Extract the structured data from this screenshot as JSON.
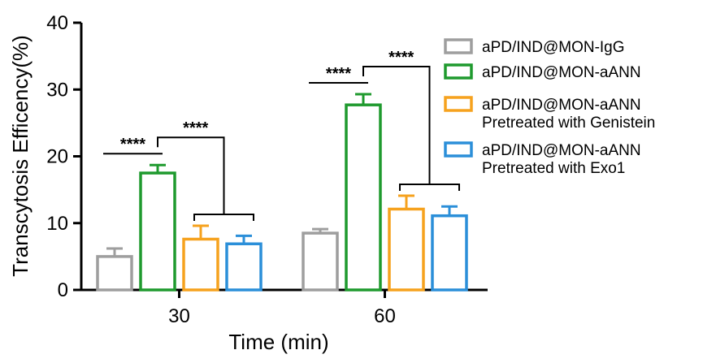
{
  "chart_data": {
    "type": "bar",
    "xlabel": "Time (min)",
    "ylabel": "Transcytosis Efficency(%)",
    "ylim": [
      0,
      40
    ],
    "yticks": [
      0,
      10,
      20,
      30,
      40
    ],
    "categories": [
      "30",
      "60"
    ],
    "series": [
      {
        "name": "aPD/IND@MON-IgG",
        "name_line2": "",
        "color": "#9e9e9e",
        "values": [
          5.0,
          8.5
        ],
        "errors": [
          1.2,
          0.6
        ]
      },
      {
        "name": "aPD/IND@MON-aANN",
        "name_line2": "",
        "color": "#1f9a2e",
        "values": [
          17.5,
          27.7
        ],
        "errors": [
          1.2,
          1.6
        ]
      },
      {
        "name": "aPD/IND@MON-aANN",
        "name_line2": "Pretreated with Genistein",
        "color": "#f6a21e",
        "values": [
          7.6,
          12.1
        ],
        "errors": [
          2.0,
          2.0
        ]
      },
      {
        "name": "aPD/IND@MON-aANN",
        "name_line2": "Pretreated with Exo1",
        "color": "#2b8fd9",
        "values": [
          6.9,
          11.1
        ],
        "errors": [
          1.2,
          1.4
        ]
      }
    ],
    "significance_label": "****",
    "grid": false,
    "legend": "right"
  }
}
